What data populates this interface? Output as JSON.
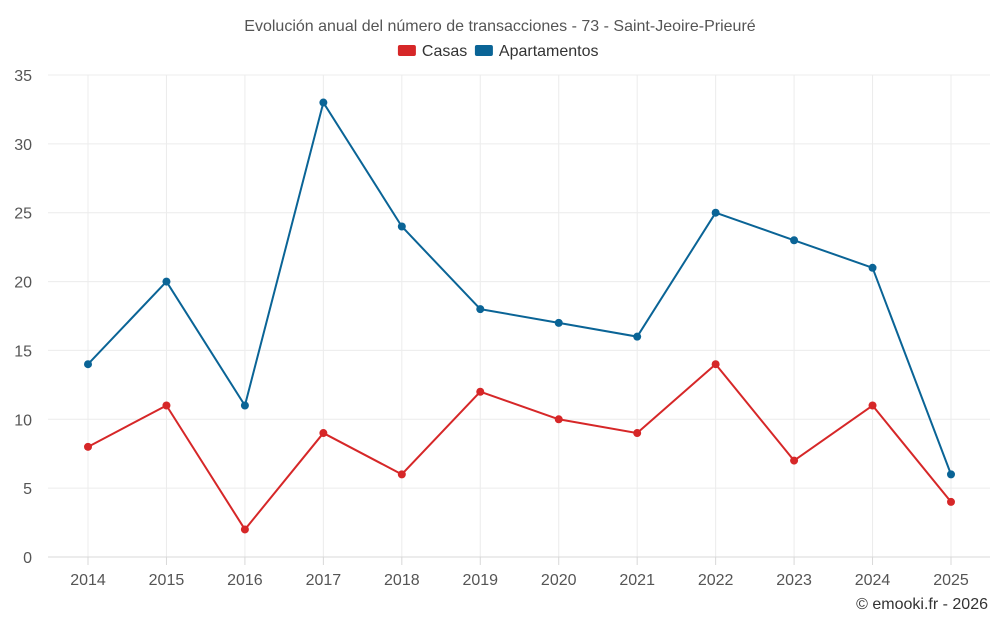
{
  "chart_data": {
    "type": "line",
    "title": "Evolución anual del número de transacciones - 73 - Saint-Jeoire-Prieuré",
    "xlabel": "",
    "ylabel": "",
    "categories": [
      "2014",
      "2015",
      "2016",
      "2017",
      "2018",
      "2019",
      "2020",
      "2021",
      "2022",
      "2023",
      "2024",
      "2025"
    ],
    "ylim": [
      0,
      35
    ],
    "yticks": [
      "0",
      "5",
      "10",
      "15",
      "20",
      "25",
      "30",
      "35"
    ],
    "grid": true,
    "legend_position": "top-center",
    "series": [
      {
        "name": "Casas",
        "color": "#d62728",
        "values": [
          8,
          11,
          2,
          9,
          6,
          12,
          10,
          9,
          14,
          7,
          11,
          4
        ]
      },
      {
        "name": "Apartamentos",
        "color": "#0a6496",
        "values": [
          14,
          20,
          11,
          33,
          24,
          18,
          17,
          16,
          25,
          23,
          21,
          6
        ]
      }
    ],
    "credit": "© emooki.fr - 2026"
  }
}
